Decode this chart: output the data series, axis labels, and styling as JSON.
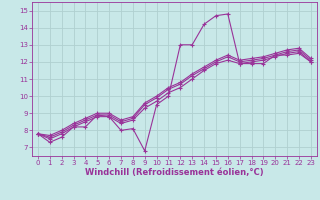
{
  "xlabel": "Windchill (Refroidissement éolien,°C)",
  "xlim": [
    -0.5,
    23.5
  ],
  "ylim": [
    6.5,
    15.5
  ],
  "xticks": [
    0,
    1,
    2,
    3,
    4,
    5,
    6,
    7,
    8,
    9,
    10,
    11,
    12,
    13,
    14,
    15,
    16,
    17,
    18,
    19,
    20,
    21,
    22,
    23
  ],
  "yticks": [
    7,
    8,
    9,
    10,
    11,
    12,
    13,
    14,
    15
  ],
  "bg_color": "#c8e8e8",
  "grid_color": "#b0d0d0",
  "line_color": "#993399",
  "lines": [
    [
      7.8,
      7.3,
      7.6,
      8.2,
      8.2,
      8.9,
      8.8,
      8.0,
      8.1,
      6.8,
      9.5,
      10.0,
      13.0,
      13.0,
      14.2,
      14.7,
      14.8,
      11.9,
      11.9,
      11.9,
      12.4,
      12.4,
      12.5,
      12.0
    ],
    [
      7.8,
      7.5,
      7.8,
      8.2,
      8.5,
      8.8,
      8.8,
      8.4,
      8.6,
      9.3,
      9.7,
      10.2,
      10.5,
      11.0,
      11.5,
      11.9,
      12.1,
      11.9,
      12.0,
      12.1,
      12.3,
      12.5,
      12.6,
      12.0
    ],
    [
      7.8,
      7.6,
      7.9,
      8.3,
      8.6,
      8.9,
      8.9,
      8.5,
      8.7,
      9.5,
      9.9,
      10.4,
      10.7,
      11.2,
      11.6,
      12.0,
      12.3,
      12.0,
      12.1,
      12.2,
      12.4,
      12.6,
      12.7,
      12.1
    ],
    [
      7.8,
      7.7,
      8.0,
      8.4,
      8.7,
      9.0,
      9.0,
      8.6,
      8.8,
      9.6,
      10.0,
      10.5,
      10.8,
      11.3,
      11.7,
      12.1,
      12.4,
      12.1,
      12.2,
      12.3,
      12.5,
      12.7,
      12.8,
      12.2
    ]
  ],
  "marker": "+",
  "markersize": 3.5,
  "linewidth": 0.8,
  "xlabel_fontsize": 6,
  "tick_fontsize": 5
}
